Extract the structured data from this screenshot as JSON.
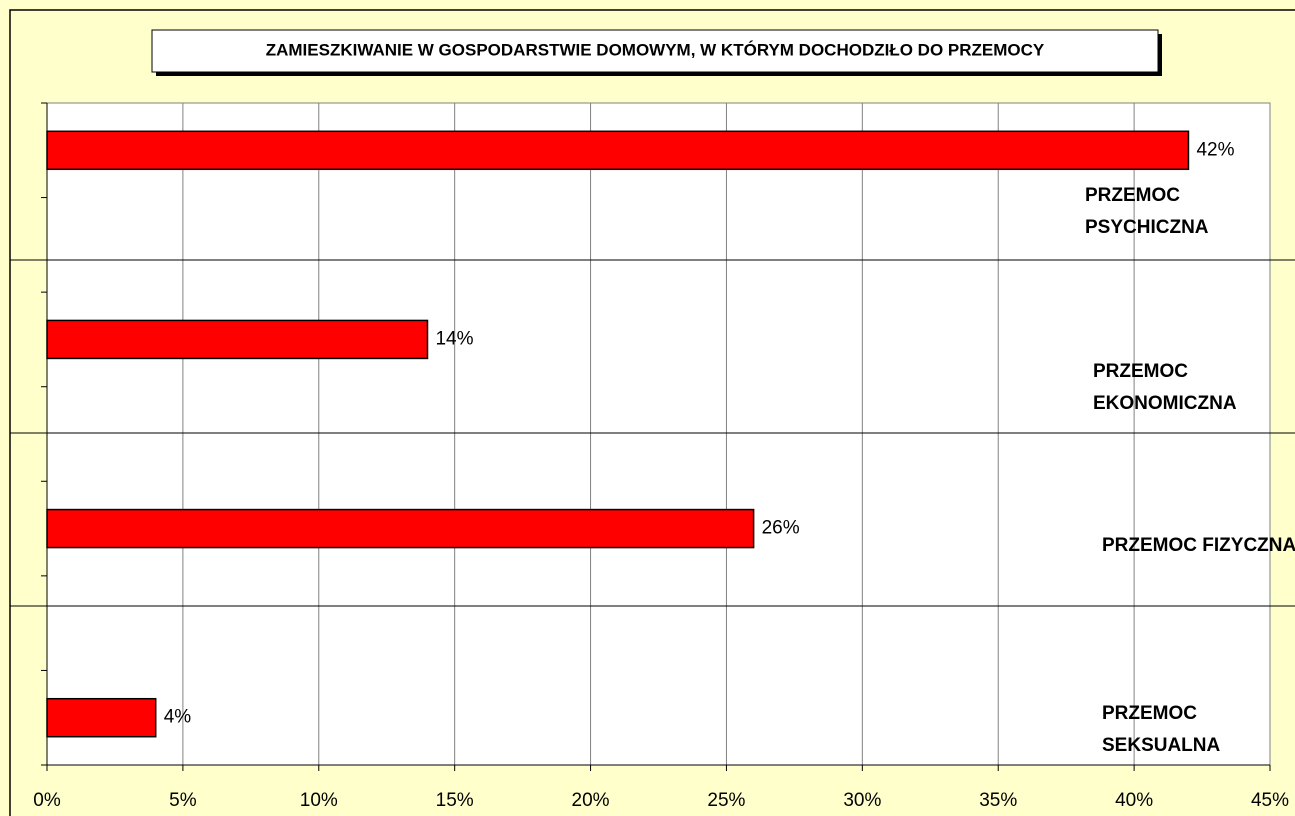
{
  "chart_data": {
    "type": "hbar",
    "title": "ZAMIESZKIWANIE W GOSPODARSTWIE DOMOWYM, W KTÓRYM DOCHODZIŁO DO PRZEMOCY",
    "categories": [
      "PRZEMOC PSYCHICZNA",
      "PRZEMOC EKONOMICZNA",
      "PRZEMOC FIZYCZNA",
      "PRZEMOC SEKSUALNA"
    ],
    "values": [
      42,
      14,
      26,
      4
    ],
    "value_labels": [
      "42%",
      "14%",
      "26%",
      "4%"
    ],
    "color": "#ff0000",
    "xlim": [
      0,
      45
    ],
    "xticks": [
      {
        "value": 0,
        "label": "0%"
      },
      {
        "value": 5,
        "label": "5%"
      },
      {
        "value": 10,
        "label": "10%"
      },
      {
        "value": 15,
        "label": "15%"
      },
      {
        "value": 20,
        "label": "20%"
      },
      {
        "value": 25,
        "label": "25%"
      },
      {
        "value": 30,
        "label": "30%"
      },
      {
        "value": 35,
        "label": "35%"
      },
      {
        "value": 40,
        "label": "40%"
      },
      {
        "value": 45,
        "label": "45%"
      }
    ],
    "grid": true
  }
}
